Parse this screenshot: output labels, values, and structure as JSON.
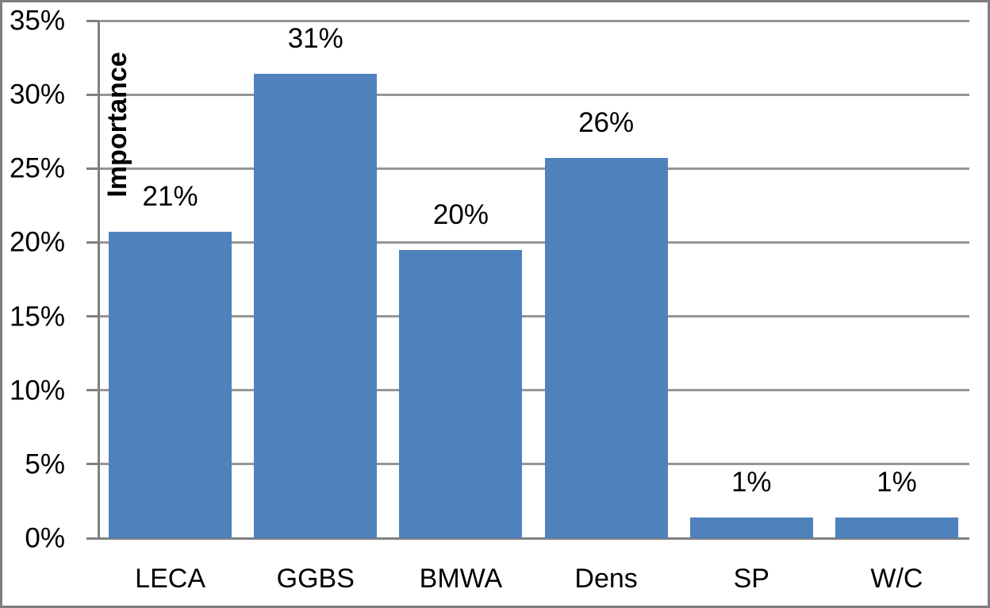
{
  "figure": {
    "background": "#ffffff",
    "border_color": "#7f7f7f"
  },
  "chart_data": {
    "type": "bar",
    "title": "",
    "xlabel": "",
    "ylabel": "Importance",
    "categories": [
      "LECA",
      "GGBS",
      "BMWA",
      "Dens",
      "SP",
      "W/C"
    ],
    "values": [
      20.7,
      31.4,
      19.5,
      25.7,
      1.4,
      1.4
    ],
    "data_labels": [
      "21%",
      "31%",
      "20%",
      "26%",
      "1%",
      "1%"
    ],
    "ylim": [
      0,
      35
    ],
    "yticks": [
      0,
      5,
      10,
      15,
      20,
      25,
      30,
      35
    ],
    "ytick_labels": [
      "0%",
      "5%",
      "10%",
      "15%",
      "20%",
      "25%",
      "30%",
      "35%"
    ],
    "grid": true,
    "legend": false,
    "bar_color": "#4F81BD",
    "gridline_color": "#969696",
    "axis_color": "#808080",
    "text_color": "#000000"
  }
}
